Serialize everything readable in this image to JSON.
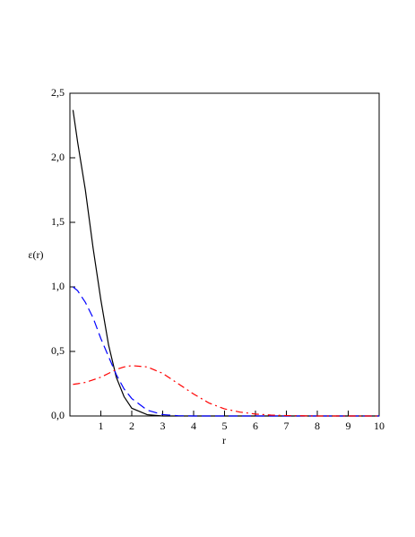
{
  "chart_data": {
    "type": "line",
    "x_label": "r",
    "y_label": "ε(r)",
    "x": [
      0.1,
      0.25,
      0.5,
      0.75,
      1,
      1.25,
      1.5,
      1.75,
      2,
      2.5,
      3,
      3.5,
      4,
      4.5,
      5,
      5.5,
      6,
      6.5,
      7,
      8,
      9,
      10
    ],
    "series": [
      {
        "color": "#000000",
        "dash": "none",
        "values": [
          2.37,
          2.12,
          1.75,
          1.3,
          0.9,
          0.55,
          0.3,
          0.15,
          0.06,
          0.01,
          0,
          0,
          0,
          0,
          0,
          0,
          0,
          0,
          0,
          0,
          0,
          0
        ]
      },
      {
        "color": "#0000ff",
        "dash": "10,5",
        "values": [
          1.0,
          0.97,
          0.88,
          0.76,
          0.6,
          0.46,
          0.32,
          0.21,
          0.135,
          0.045,
          0.011,
          0.002,
          0,
          0,
          0,
          0,
          0,
          0,
          0,
          0,
          0,
          0
        ]
      },
      {
        "color": "#ff0000",
        "dash": "8,4,2,4",
        "values": [
          0.245,
          0.25,
          0.26,
          0.28,
          0.3,
          0.33,
          0.36,
          0.38,
          0.39,
          0.38,
          0.33,
          0.25,
          0.17,
          0.1,
          0.055,
          0.03,
          0.015,
          0.007,
          0.003,
          0,
          0,
          0
        ]
      }
    ],
    "xlim": [
      0,
      10
    ],
    "xticks": [
      1,
      2,
      3,
      4,
      5,
      6,
      7,
      8,
      9,
      10
    ],
    "ylim": [
      0,
      2.5
    ],
    "yticks": [
      {
        "value": 0,
        "label": "0,0"
      },
      {
        "value": 0.5,
        "label": "0,5"
      },
      {
        "value": 1,
        "label": "1,0"
      },
      {
        "value": 1.5,
        "label": "1,5"
      },
      {
        "value": 2,
        "label": "2,0"
      },
      {
        "value": 2.5,
        "label": "2,5"
      }
    ],
    "grid": false
  }
}
